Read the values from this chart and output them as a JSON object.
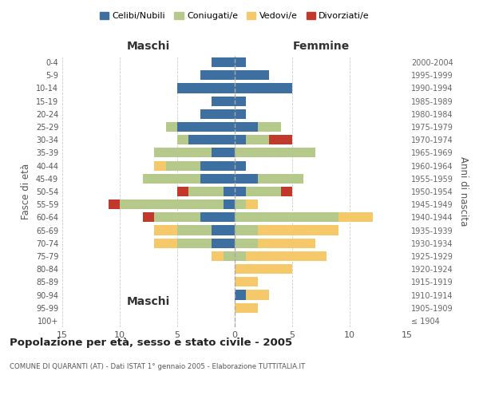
{
  "age_groups": [
    "100+",
    "95-99",
    "90-94",
    "85-89",
    "80-84",
    "75-79",
    "70-74",
    "65-69",
    "60-64",
    "55-59",
    "50-54",
    "45-49",
    "40-44",
    "35-39",
    "30-34",
    "25-29",
    "20-24",
    "15-19",
    "10-14",
    "5-9",
    "0-4"
  ],
  "birth_years": [
    "≤ 1904",
    "1905-1909",
    "1910-1914",
    "1915-1919",
    "1920-1924",
    "1925-1929",
    "1930-1934",
    "1935-1939",
    "1940-1944",
    "1945-1949",
    "1950-1954",
    "1955-1959",
    "1960-1964",
    "1965-1969",
    "1970-1974",
    "1975-1979",
    "1980-1984",
    "1985-1989",
    "1990-1994",
    "1995-1999",
    "2000-2004"
  ],
  "maschi": {
    "celibi": [
      0,
      0,
      0,
      0,
      0,
      0,
      2,
      2,
      3,
      1,
      1,
      3,
      3,
      2,
      4,
      5,
      3,
      2,
      5,
      3,
      2
    ],
    "coniugati": [
      0,
      0,
      0,
      0,
      0,
      1,
      3,
      3,
      4,
      9,
      3,
      5,
      3,
      5,
      1,
      1,
      0,
      0,
      0,
      0,
      0
    ],
    "vedovi": [
      0,
      0,
      0,
      0,
      0,
      1,
      2,
      2,
      0,
      0,
      0,
      0,
      1,
      0,
      0,
      0,
      0,
      0,
      0,
      0,
      0
    ],
    "divorziati": [
      0,
      0,
      0,
      0,
      0,
      0,
      0,
      0,
      1,
      1,
      1,
      0,
      0,
      0,
      0,
      0,
      0,
      0,
      0,
      0,
      0
    ]
  },
  "femmine": {
    "nubili": [
      0,
      0,
      1,
      0,
      0,
      0,
      0,
      0,
      0,
      0,
      1,
      2,
      1,
      0,
      1,
      2,
      1,
      1,
      5,
      3,
      1
    ],
    "coniugate": [
      0,
      0,
      0,
      0,
      0,
      1,
      2,
      2,
      9,
      1,
      3,
      4,
      0,
      7,
      2,
      2,
      0,
      0,
      0,
      0,
      0
    ],
    "vedove": [
      0,
      2,
      2,
      2,
      5,
      7,
      5,
      7,
      3,
      1,
      0,
      0,
      0,
      0,
      0,
      0,
      0,
      0,
      0,
      0,
      0
    ],
    "divorziate": [
      0,
      0,
      0,
      0,
      0,
      0,
      0,
      0,
      0,
      0,
      1,
      0,
      0,
      0,
      2,
      0,
      0,
      0,
      0,
      0,
      0
    ]
  },
  "colors": {
    "celibi_nubili": "#3d6fa0",
    "coniugati": "#b5c98a",
    "vedovi": "#f5c96a",
    "divorziati": "#c0392b"
  },
  "title": "Popolazione per età, sesso e stato civile - 2005",
  "subtitle": "COMUNE DI QUARANTI (AT) - Dati ISTAT 1° gennaio 2005 - Elaborazione TUTTITALIA.IT",
  "xlabel_left": "Maschi",
  "xlabel_right": "Femmine",
  "ylabel_left": "Fasce di età",
  "ylabel_right": "Anni di nascita",
  "xlim": 15,
  "background_color": "#ffffff",
  "legend_labels": [
    "Celibi/Nubili",
    "Coniugati/e",
    "Vedovi/e",
    "Divorziati/e"
  ]
}
